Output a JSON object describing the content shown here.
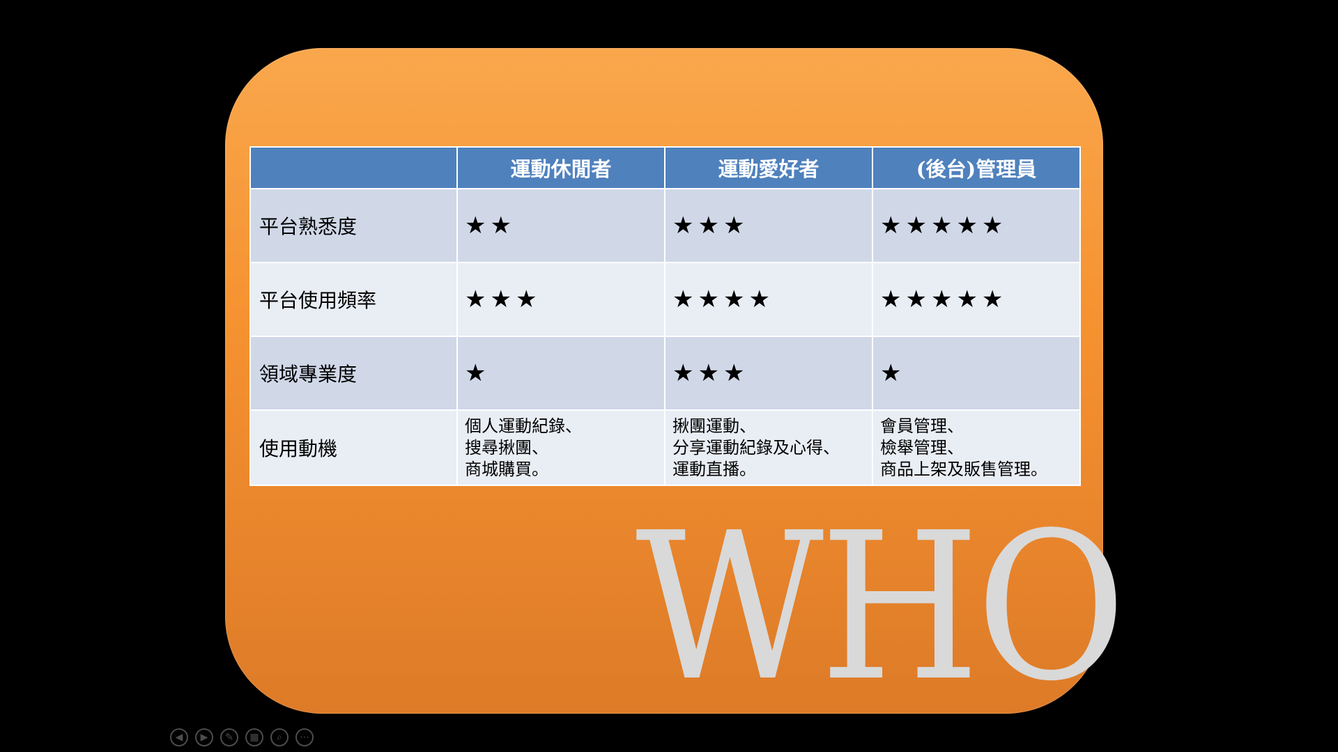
{
  "table": {
    "headers": [
      "",
      "運動休閒者",
      "運動愛好者",
      "(後台)管理員"
    ],
    "rows": [
      {
        "label": "平台熟悉度",
        "cells": [
          "★★",
          "★★★",
          "★★★★★"
        ],
        "ratings": [
          2,
          3,
          5
        ]
      },
      {
        "label": "平台使用頻率",
        "cells": [
          "★★★",
          "★★★★",
          "★★★★★"
        ],
        "ratings": [
          3,
          4,
          5
        ]
      },
      {
        "label": "領域專業度",
        "cells": [
          "★",
          "★★★",
          "★"
        ],
        "ratings": [
          1,
          3,
          1
        ]
      }
    ],
    "motivation": {
      "label": "使用動機",
      "cells": [
        [
          "個人運動紀錄、",
          "搜尋揪團、",
          "商城購買。"
        ],
        [
          "揪團運動、",
          "分享運動紀錄及心得、",
          "運動直播。"
        ],
        [
          "會員管理、",
          "檢舉管理、",
          "商品上架及販售管理。"
        ]
      ]
    }
  },
  "watermark": "WHO",
  "toolbar": {
    "icons": [
      "previous-slide-icon",
      "next-slide-icon",
      "pen-icon",
      "slide-grid-icon",
      "zoom-icon",
      "more-options-icon"
    ],
    "glyphs": [
      "◀",
      "▶",
      "✎",
      "▦",
      "⌕",
      "⋯"
    ]
  },
  "colors": {
    "card": "#f59130",
    "header": "#4f81bd",
    "row_odd": "#d0d8e8",
    "row_even": "#e9edf4",
    "watermark": "#d9d9d9"
  }
}
